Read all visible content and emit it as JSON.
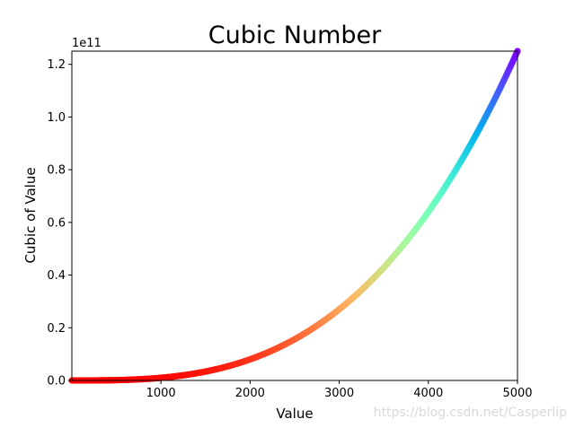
{
  "chart_data": {
    "type": "scatter",
    "title": "Cubic Number",
    "xlabel": "Value",
    "ylabel": "Cubic of Value",
    "y_offset_text": "1e11",
    "xlim": [
      1,
      5000
    ],
    "ylim": [
      0,
      125000000000.0
    ],
    "x_ticks": [
      1000,
      2000,
      3000,
      4000,
      5000
    ],
    "y_ticks": [
      0,
      20000000000.0,
      40000000000.0,
      60000000000.0,
      80000000000.0,
      100000000000.0,
      120000000000.0
    ],
    "x_tick_labels": [
      "1000",
      "2000",
      "3000",
      "4000",
      "5000"
    ],
    "y_tick_labels": [
      "0.0",
      "0.2",
      "0.4",
      "0.6",
      "0.8",
      "1.0",
      "1.2"
    ],
    "function": "y = x^3",
    "x_range": [
      1,
      5000
    ],
    "colormap": "rainbow",
    "color_stops": [
      "#80ffff",
      "#ff0000"
    ],
    "grid": false,
    "legend": "none"
  },
  "watermark": "https://blog.csdn.net/Casperlip"
}
